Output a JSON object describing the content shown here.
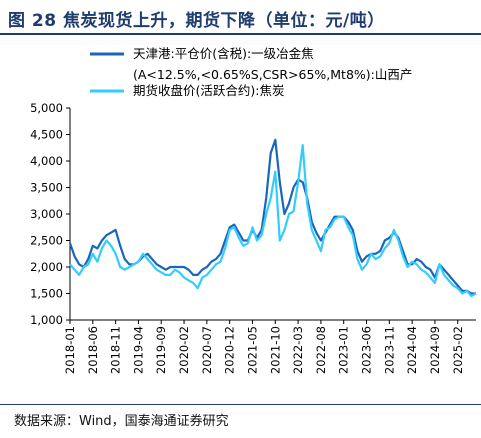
{
  "title": "图 28  焦炭现货上升，期货下降（单位：元/吨）",
  "source": "数据来源：Wind，国泰海通证券研究",
  "chart_data": {
    "type": "line",
    "ylim": [
      1000,
      5000
    ],
    "y_ticks": [
      "1,000",
      "1,500",
      "2,000",
      "2,500",
      "3,000",
      "3,500",
      "4,000",
      "4,500",
      "5,000"
    ],
    "x_ticks": [
      "2018-01",
      "2018-06",
      "2018-11",
      "2019-04",
      "2019-09",
      "2020-02",
      "2020-07",
      "2020-12",
      "2021-05",
      "2021-10",
      "2022-03",
      "2022-08",
      "2023-01",
      "2023-06",
      "2023-11",
      "2024-04",
      "2024-09",
      "2025-02"
    ],
    "x_range": [
      "2018-01",
      "2025-06"
    ],
    "series": [
      {
        "name": "天津港:平仓价(含税):一级冶金焦(A<12.5%,<0.65%S,CSR>65%,Mt8%):山西产",
        "color": "#1a66b8",
        "x": [
          "2018-01",
          "2018-02",
          "2018-03",
          "2018-04",
          "2018-05",
          "2018-06",
          "2018-07",
          "2018-08",
          "2018-09",
          "2018-10",
          "2018-11",
          "2018-12",
          "2019-01",
          "2019-02",
          "2019-03",
          "2019-04",
          "2019-05",
          "2019-06",
          "2019-07",
          "2019-08",
          "2019-09",
          "2019-10",
          "2019-11",
          "2019-12",
          "2020-01",
          "2020-02",
          "2020-03",
          "2020-04",
          "2020-05",
          "2020-06",
          "2020-07",
          "2020-08",
          "2020-09",
          "2020-10",
          "2020-11",
          "2020-12",
          "2021-01",
          "2021-02",
          "2021-03",
          "2021-04",
          "2021-05",
          "2021-06",
          "2021-07",
          "2021-08",
          "2021-09",
          "2021-10",
          "2021-11",
          "2021-12",
          "2022-01",
          "2022-02",
          "2022-03",
          "2022-04",
          "2022-05",
          "2022-06",
          "2022-07",
          "2022-08",
          "2022-09",
          "2022-10",
          "2022-11",
          "2022-12",
          "2023-01",
          "2023-02",
          "2023-03",
          "2023-04",
          "2023-05",
          "2023-06",
          "2023-07",
          "2023-08",
          "2023-09",
          "2023-10",
          "2023-11",
          "2023-12",
          "2024-01",
          "2024-02",
          "2024-03",
          "2024-04",
          "2024-05",
          "2024-06",
          "2024-07",
          "2024-08",
          "2024-09",
          "2024-10",
          "2024-11",
          "2024-12",
          "2025-01",
          "2025-02",
          "2025-03",
          "2025-04",
          "2025-05",
          "2025-06"
        ],
        "y": [
          2450,
          2200,
          2050,
          2000,
          2150,
          2400,
          2350,
          2500,
          2600,
          2650,
          2700,
          2400,
          2150,
          2050,
          2050,
          2100,
          2200,
          2250,
          2150,
          2050,
          2000,
          1950,
          2000,
          2000,
          2000,
          2000,
          1950,
          1850,
          1850,
          1950,
          2000,
          2100,
          2150,
          2250,
          2500,
          2750,
          2800,
          2650,
          2500,
          2500,
          2700,
          2550,
          2700,
          3300,
          4150,
          4400,
          3600,
          3000,
          3200,
          3500,
          3650,
          3600,
          3300,
          2850,
          2650,
          2500,
          2650,
          2800,
          2950,
          2950,
          2950,
          2850,
          2700,
          2300,
          2100,
          2200,
          2250,
          2250,
          2300,
          2500,
          2550,
          2650,
          2550,
          2300,
          2050,
          2050,
          2150,
          2100,
          2000,
          1950,
          1800,
          2050,
          1950,
          1850,
          1750,
          1650,
          1550,
          1550,
          1500,
          1500
        ]
      },
      {
        "name": "期货收盘价(活跃合约):焦炭",
        "color": "#33ccff",
        "x": [
          "2018-01",
          "2018-02",
          "2018-03",
          "2018-04",
          "2018-05",
          "2018-06",
          "2018-07",
          "2018-08",
          "2018-09",
          "2018-10",
          "2018-11",
          "2018-12",
          "2019-01",
          "2019-02",
          "2019-03",
          "2019-04",
          "2019-05",
          "2019-06",
          "2019-07",
          "2019-08",
          "2019-09",
          "2019-10",
          "2019-11",
          "2019-12",
          "2020-01",
          "2020-02",
          "2020-03",
          "2020-04",
          "2020-05",
          "2020-06",
          "2020-07",
          "2020-08",
          "2020-09",
          "2020-10",
          "2020-11",
          "2020-12",
          "2021-01",
          "2021-02",
          "2021-03",
          "2021-04",
          "2021-05",
          "2021-06",
          "2021-07",
          "2021-08",
          "2021-09",
          "2021-10",
          "2021-11",
          "2021-12",
          "2022-01",
          "2022-02",
          "2022-03",
          "2022-04",
          "2022-05",
          "2022-06",
          "2022-07",
          "2022-08",
          "2022-09",
          "2022-10",
          "2022-11",
          "2022-12",
          "2023-01",
          "2023-02",
          "2023-03",
          "2023-04",
          "2023-05",
          "2023-06",
          "2023-07",
          "2023-08",
          "2023-09",
          "2023-10",
          "2023-11",
          "2023-12",
          "2024-01",
          "2024-02",
          "2024-03",
          "2024-04",
          "2024-05",
          "2024-06",
          "2024-07",
          "2024-08",
          "2024-09",
          "2024-10",
          "2024-11",
          "2024-12",
          "2025-01",
          "2025-02",
          "2025-03",
          "2025-04",
          "2025-05",
          "2025-06"
        ],
        "y": [
          2050,
          1950,
          1850,
          2000,
          2050,
          2250,
          2100,
          2350,
          2500,
          2400,
          2250,
          2000,
          1950,
          2000,
          2050,
          2100,
          2250,
          2150,
          2050,
          1950,
          1900,
          1850,
          1850,
          1950,
          1900,
          1800,
          1750,
          1700,
          1600,
          1800,
          1850,
          1950,
          2050,
          2100,
          2350,
          2700,
          2750,
          2550,
          2400,
          2450,
          2750,
          2500,
          2600,
          3000,
          3300,
          3800,
          2500,
          2700,
          3000,
          3050,
          3600,
          4300,
          3200,
          2700,
          2500,
          2300,
          2700,
          2750,
          2900,
          2950,
          2950,
          2750,
          2600,
          2150,
          1950,
          2050,
          2250,
          2150,
          2200,
          2350,
          2450,
          2700,
          2500,
          2200,
          2000,
          2100,
          2050,
          1950,
          1900,
          1800,
          1700,
          2050,
          1850,
          1750,
          1650,
          1600,
          1500,
          1550,
          1450,
          1500
        ]
      }
    ]
  }
}
